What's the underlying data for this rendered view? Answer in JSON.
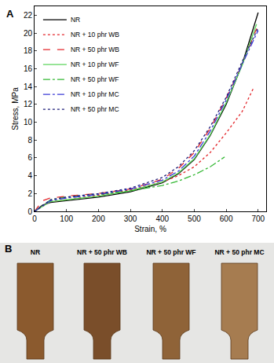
{
  "chart_data": {
    "type": "line",
    "panel_label": "A",
    "x_label": "Strain, %",
    "y_label": "Stress, MPa",
    "xlim": [
      0,
      725
    ],
    "ylim": [
      0,
      23
    ],
    "xticks": [
      0,
      100,
      200,
      300,
      400,
      500,
      600,
      700
    ],
    "yticks": [
      0,
      2,
      4,
      6,
      8,
      10,
      12,
      14,
      16,
      18,
      20,
      22
    ],
    "grid": false,
    "legend": "top-left",
    "series": [
      {
        "name": "NR",
        "color": "#000000",
        "line_style": "solid",
        "x": [
          0,
          25,
          50,
          100,
          200,
          300,
          400,
          450,
          500,
          550,
          600,
          650,
          700
        ],
        "values": [
          0,
          0.7,
          1.0,
          1.2,
          1.6,
          2.2,
          3.2,
          4.2,
          5.8,
          8.5,
          12,
          16.5,
          22.3
        ]
      },
      {
        "name": "NR + 10 phr WB",
        "color": "#e3262b",
        "line_style": "dot",
        "x": [
          0,
          50,
          100,
          200,
          300,
          400,
          450,
          500,
          550,
          600,
          650,
          685
        ],
        "values": [
          0,
          1.1,
          1.3,
          1.8,
          2.4,
          3.3,
          4.0,
          5.0,
          6.6,
          8.8,
          11.2,
          13.8
        ]
      },
      {
        "name": "NR + 50 phr WB",
        "color": "#e3262b",
        "line_style": "dash",
        "x": [
          0,
          25,
          50,
          100,
          200,
          300,
          400,
          450,
          500,
          550,
          600,
          650,
          695
        ],
        "values": [
          0,
          1.2,
          1.5,
          1.7,
          2.0,
          2.5,
          3.6,
          4.8,
          6.6,
          9.3,
          12.7,
          16.5,
          20.5
        ]
      },
      {
        "name": "NR + 10 phr WF",
        "color": "#5cd65c",
        "line_style": "solid",
        "x": [
          0,
          50,
          100,
          200,
          300,
          400,
          450,
          500,
          550,
          600,
          650,
          695
        ],
        "values": [
          0,
          1.1,
          1.3,
          1.7,
          2.3,
          3.3,
          4.3,
          5.9,
          8.6,
          12.2,
          16.4,
          21.0
        ]
      },
      {
        "name": "NR + 50 phr WF",
        "color": "#33b833",
        "line_style": "dashdot",
        "x": [
          0,
          50,
          100,
          200,
          300,
          400,
          450,
          500,
          550,
          595
        ],
        "values": [
          0,
          1.3,
          1.6,
          1.9,
          2.3,
          2.9,
          3.4,
          4.1,
          5.0,
          6.1
        ]
      },
      {
        "name": "NR + 10 phr MC",
        "color": "#3a3ad6",
        "line_style": "dashdot",
        "x": [
          0,
          50,
          100,
          200,
          300,
          400,
          450,
          500,
          550,
          600,
          650,
          700
        ],
        "values": [
          0,
          1.2,
          1.5,
          1.9,
          2.5,
          3.5,
          4.5,
          6.2,
          9.0,
          12.5,
          16.5,
          20.3
        ]
      },
      {
        "name": "NR + 50 phr MC",
        "color": "#1f1f7a",
        "line_style": "dot",
        "x": [
          0,
          50,
          100,
          200,
          300,
          400,
          450,
          500,
          550,
          600,
          650,
          700
        ],
        "values": [
          0,
          1.3,
          1.6,
          2.0,
          2.6,
          3.8,
          5.0,
          6.8,
          9.5,
          12.8,
          16.8,
          20.6
        ]
      }
    ]
  },
  "photo": {
    "panel_label": "B",
    "samples": [
      {
        "label": "NR",
        "color": "#8b5a2e"
      },
      {
        "label": "NR + 50 phr WB",
        "color": "#7a4e2a"
      },
      {
        "label": "NR + 50 phr WF",
        "color": "#8f6338"
      },
      {
        "label": "NR + 50 phr MC",
        "color": "#a67c50"
      }
    ]
  }
}
